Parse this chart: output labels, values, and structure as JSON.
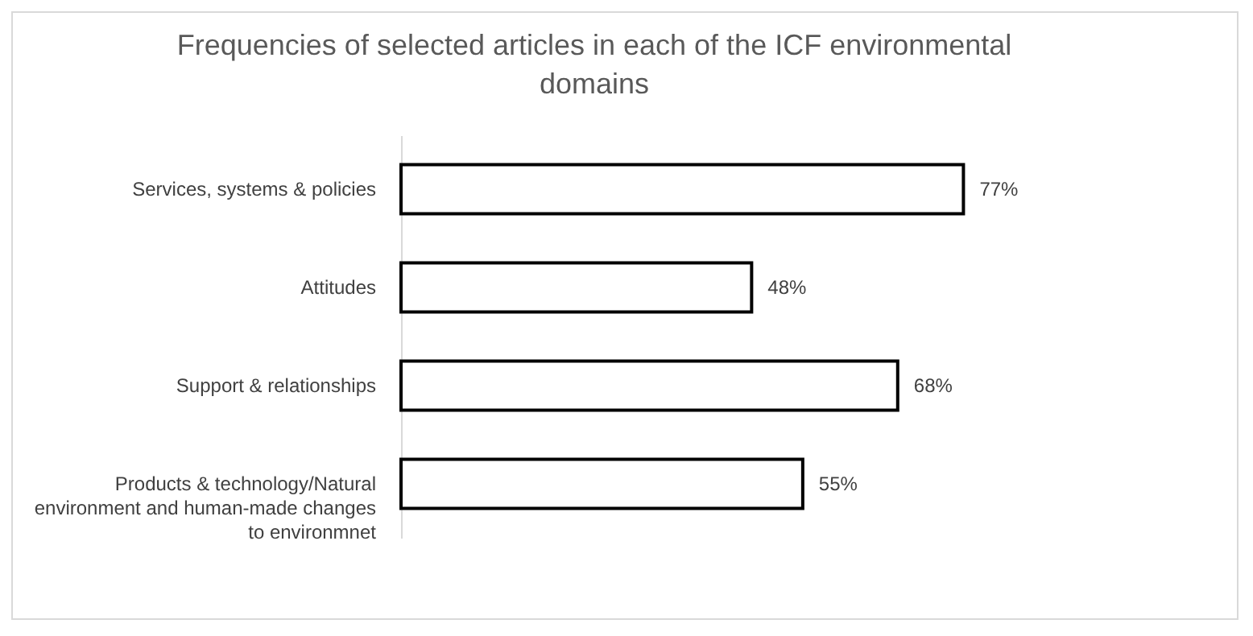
{
  "chart_data": {
    "type": "bar",
    "orientation": "horizontal",
    "relative": false,
    "title": "Frequencies of selected articles in each of the ICF environmental domains",
    "categories": [
      "Services, systems & policies",
      "Attitudes",
      "Support & relationships",
      "Products & technology/Natural environment and human-made changes to environmnet"
    ],
    "values": [
      77,
      48,
      68,
      55
    ],
    "value_labels": [
      "77%",
      "48%",
      "68%",
      "55%"
    ],
    "color": "#ffffff"
  }
}
